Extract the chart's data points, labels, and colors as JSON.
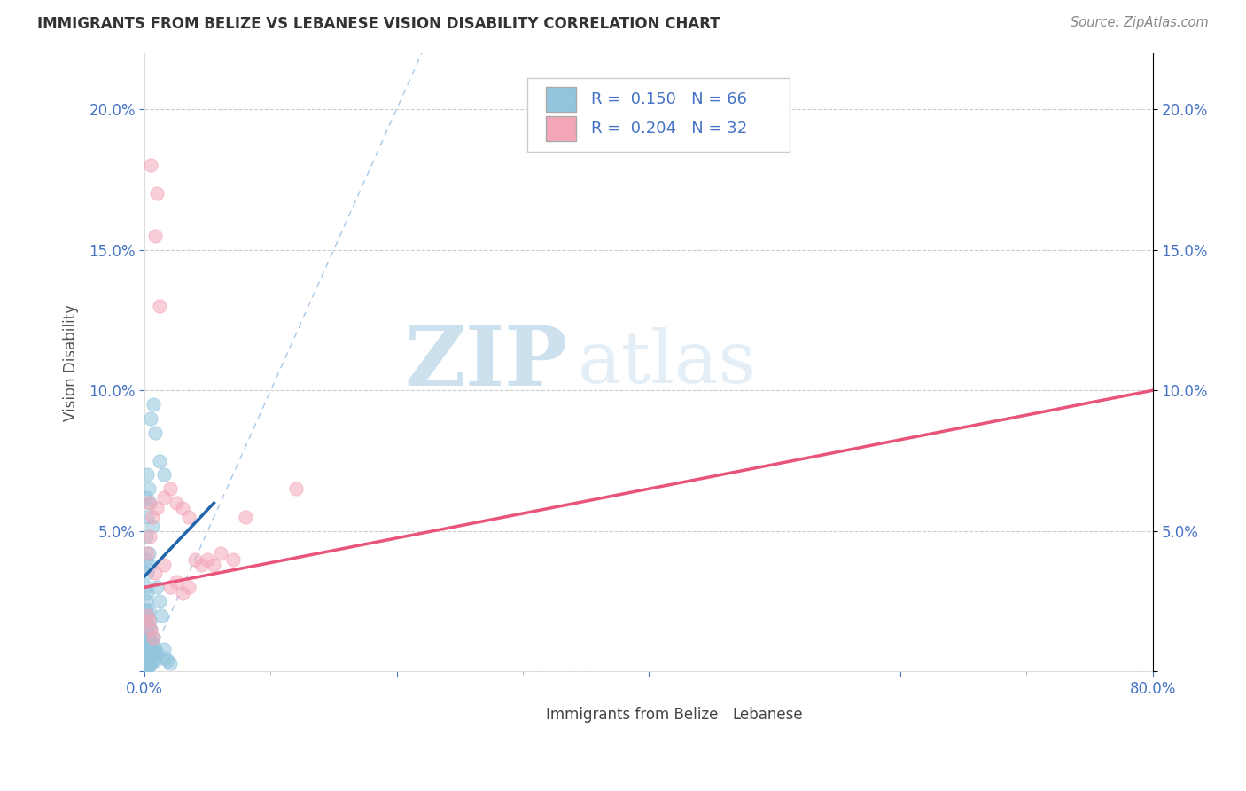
{
  "title": "IMMIGRANTS FROM BELIZE VS LEBANESE VISION DISABILITY CORRELATION CHART",
  "source": "Source: ZipAtlas.com",
  "ylabel": "Vision Disability",
  "xlim": [
    0.0,
    0.8
  ],
  "ylim": [
    0.0,
    0.22
  ],
  "color_blue": "#92c5de",
  "color_pink": "#f4a6b8",
  "color_blue_line": "#2166ac",
  "color_pink_line": "#e8547a",
  "color_diag": "#a8c8e8",
  "background_color": "#ffffff",
  "grid_color": "#cccccc",
  "tick_color": "#4472c4",
  "belize_points": [
    [
      0.001,
      0.03
    ],
    [
      0.001,
      0.025
    ],
    [
      0.001,
      0.022
    ],
    [
      0.001,
      0.018
    ],
    [
      0.001,
      0.015
    ],
    [
      0.001,
      0.012
    ],
    [
      0.001,
      0.01
    ],
    [
      0.001,
      0.008
    ],
    [
      0.001,
      0.006
    ],
    [
      0.001,
      0.004
    ],
    [
      0.001,
      0.002
    ],
    [
      0.001,
      0.001
    ],
    [
      0.002,
      0.028
    ],
    [
      0.002,
      0.02
    ],
    [
      0.002,
      0.016
    ],
    [
      0.002,
      0.012
    ],
    [
      0.002,
      0.008
    ],
    [
      0.002,
      0.005
    ],
    [
      0.002,
      0.002
    ],
    [
      0.002,
      0.001
    ],
    [
      0.003,
      0.022
    ],
    [
      0.003,
      0.016
    ],
    [
      0.003,
      0.012
    ],
    [
      0.003,
      0.008
    ],
    [
      0.003,
      0.005
    ],
    [
      0.003,
      0.002
    ],
    [
      0.004,
      0.018
    ],
    [
      0.004,
      0.012
    ],
    [
      0.004,
      0.008
    ],
    [
      0.004,
      0.004
    ],
    [
      0.005,
      0.015
    ],
    [
      0.005,
      0.01
    ],
    [
      0.005,
      0.006
    ],
    [
      0.005,
      0.003
    ],
    [
      0.006,
      0.012
    ],
    [
      0.006,
      0.008
    ],
    [
      0.006,
      0.004
    ],
    [
      0.007,
      0.01
    ],
    [
      0.007,
      0.006
    ],
    [
      0.008,
      0.008
    ],
    [
      0.008,
      0.004
    ],
    [
      0.009,
      0.007
    ],
    [
      0.01,
      0.006
    ],
    [
      0.01,
      0.03
    ],
    [
      0.012,
      0.025
    ],
    [
      0.013,
      0.02
    ],
    [
      0.015,
      0.008
    ],
    [
      0.016,
      0.005
    ],
    [
      0.018,
      0.004
    ],
    [
      0.02,
      0.003
    ],
    [
      0.005,
      0.09
    ],
    [
      0.007,
      0.095
    ],
    [
      0.008,
      0.085
    ],
    [
      0.012,
      0.075
    ],
    [
      0.015,
      0.07
    ],
    [
      0.003,
      0.065
    ],
    [
      0.002,
      0.055
    ],
    [
      0.004,
      0.06
    ],
    [
      0.006,
      0.052
    ],
    [
      0.001,
      0.048
    ],
    [
      0.001,
      0.04
    ],
    [
      0.002,
      0.035
    ],
    [
      0.003,
      0.042
    ],
    [
      0.004,
      0.038
    ],
    [
      0.002,
      0.07
    ],
    [
      0.001,
      0.062
    ]
  ],
  "lebanese_points": [
    [
      0.005,
      0.18
    ],
    [
      0.01,
      0.17
    ],
    [
      0.008,
      0.155
    ],
    [
      0.012,
      0.13
    ],
    [
      0.003,
      0.06
    ],
    [
      0.006,
      0.055
    ],
    [
      0.01,
      0.058
    ],
    [
      0.015,
      0.062
    ],
    [
      0.02,
      0.065
    ],
    [
      0.025,
      0.06
    ],
    [
      0.03,
      0.058
    ],
    [
      0.035,
      0.055
    ],
    [
      0.04,
      0.04
    ],
    [
      0.045,
      0.038
    ],
    [
      0.05,
      0.04
    ],
    [
      0.055,
      0.038
    ],
    [
      0.06,
      0.042
    ],
    [
      0.07,
      0.04
    ],
    [
      0.08,
      0.055
    ],
    [
      0.12,
      0.065
    ],
    [
      0.002,
      0.042
    ],
    [
      0.004,
      0.048
    ],
    [
      0.008,
      0.035
    ],
    [
      0.015,
      0.038
    ],
    [
      0.02,
      0.03
    ],
    [
      0.025,
      0.032
    ],
    [
      0.03,
      0.028
    ],
    [
      0.035,
      0.03
    ],
    [
      0.002,
      0.02
    ],
    [
      0.003,
      0.018
    ],
    [
      0.005,
      0.015
    ],
    [
      0.007,
      0.012
    ]
  ],
  "pink_line_x0": 0.0,
  "pink_line_y0": 0.03,
  "pink_line_x1": 0.8,
  "pink_line_y1": 0.1,
  "blue_line_x0": 0.0,
  "blue_line_y0": 0.034,
  "blue_line_x1": 0.055,
  "blue_line_y1": 0.06
}
